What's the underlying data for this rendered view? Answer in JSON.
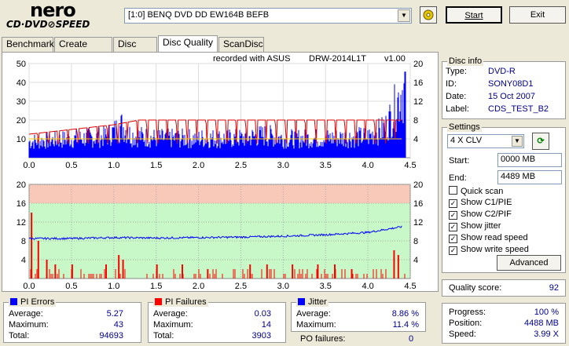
{
  "logo": {
    "line1": "nero",
    "line2": "CD·DVD⊘SPEED"
  },
  "drive_select": {
    "value": "[1:0]  BENQ DVD DD EW164B BEFB"
  },
  "buttons": {
    "start": "Start",
    "exit": "Exit",
    "advanced": "Advanced"
  },
  "tabs": [
    "Benchmark",
    "Create Disc",
    "Disc Info",
    "Disc Quality",
    "ScanDisc"
  ],
  "chart_header": {
    "recorded": "recorded with ASUS",
    "drive": "DRW-2014L1T",
    "version": "v1.00"
  },
  "chart_data": [
    {
      "type": "bar",
      "name": "PI Errors",
      "x_ticks": [
        "0.0",
        "0.5",
        "1.0",
        "1.5",
        "2.0",
        "2.5",
        "3.0",
        "3.5",
        "4.0",
        "4.5"
      ],
      "xlim": [
        0,
        4.5
      ],
      "y_left_ticks": [
        "10",
        "20",
        "30",
        "40",
        "50"
      ],
      "y_right_ticks": [
        "4",
        "8",
        "12",
        "16",
        "20"
      ],
      "ylim_left": [
        0,
        50
      ],
      "ylim_right": [
        0,
        20
      ],
      "pi_profile": [
        [
          0,
          10
        ],
        [
          0.3,
          11
        ],
        [
          0.6,
          12
        ],
        [
          0.9,
          13
        ],
        [
          1.0,
          16
        ],
        [
          1.1,
          20
        ],
        [
          1.2,
          14
        ],
        [
          1.5,
          12
        ],
        [
          2.0,
          12
        ],
        [
          2.5,
          12
        ],
        [
          2.8,
          14
        ],
        [
          3.0,
          12
        ],
        [
          3.5,
          12
        ],
        [
          4.0,
          13
        ],
        [
          4.2,
          18
        ],
        [
          4.3,
          28
        ],
        [
          4.35,
          35
        ],
        [
          4.4,
          42
        ],
        [
          4.45,
          45
        ]
      ],
      "speed_profile": [
        [
          0,
          5
        ],
        [
          0.5,
          6
        ],
        [
          1.0,
          7
        ],
        [
          1.3,
          8
        ],
        [
          4.4,
          8
        ]
      ],
      "colors": {
        "pi": "#0000ff",
        "speed": "#dd0000",
        "read": "#ffcc00"
      }
    },
    {
      "type": "bar",
      "name": "PI Failures",
      "x_ticks": [
        "0.0",
        "0.5",
        "1.0",
        "1.5",
        "2.0",
        "2.5",
        "3.0",
        "3.5",
        "4.0",
        "4.5"
      ],
      "xlim": [
        0,
        4.5
      ],
      "y_left_ticks": [
        "4",
        "8",
        "12",
        "16",
        "20"
      ],
      "y_right_ticks": [
        "4",
        "8",
        "12",
        "16",
        "20"
      ],
      "ylim": [
        0,
        20
      ],
      "jitter_profile": [
        [
          0,
          8.5
        ],
        [
          0.5,
          8.5
        ],
        [
          1.0,
          8.7
        ],
        [
          1.5,
          8.6
        ],
        [
          2.0,
          8.7
        ],
        [
          2.5,
          8.8
        ],
        [
          3.0,
          9.0
        ],
        [
          3.5,
          9.3
        ],
        [
          4.0,
          9.8
        ],
        [
          4.4,
          11.0
        ]
      ],
      "failure_spikes": [
        [
          0.02,
          14
        ],
        [
          0.1,
          8
        ],
        [
          0.2,
          4
        ],
        [
          0.3,
          3
        ],
        [
          0.5,
          3
        ],
        [
          0.9,
          3
        ],
        [
          1.05,
          5
        ],
        [
          1.1,
          4
        ],
        [
          1.5,
          3
        ],
        [
          1.8,
          3
        ],
        [
          2.1,
          2
        ],
        [
          2.6,
          3
        ],
        [
          2.8,
          3
        ],
        [
          3.1,
          3
        ],
        [
          3.4,
          3
        ],
        [
          3.6,
          3
        ],
        [
          3.8,
          2
        ],
        [
          4.3,
          6
        ],
        [
          4.35,
          5
        ]
      ],
      "bands": {
        "red_from": 16,
        "red_to": 20,
        "green_from": 0,
        "green_to": 16
      },
      "colors": {
        "fail": "#ff0000",
        "jitter": "#0000ff",
        "band_red": "#f8c8b8",
        "band_green": "#c8f8c8"
      }
    }
  ],
  "disc_info": {
    "title": "Disc info",
    "type_label": "Type:",
    "type": "DVD-R",
    "id_label": "ID:",
    "id": "SONY08D1",
    "date_label": "Date:",
    "date": "15 Oct 2007",
    "label_label": "Label:",
    "label": "CDS_TEST_B2"
  },
  "settings": {
    "title": "Settings",
    "speed": "4 X CLV",
    "start_label": "Start:",
    "start": "0000 MB",
    "end_label": "End:",
    "end": "4489 MB",
    "checks": [
      {
        "label": "Quick scan",
        "checked": false
      },
      {
        "label": "Show C1/PIE",
        "checked": true
      },
      {
        "label": "Show C2/PIF",
        "checked": true
      },
      {
        "label": "Show jitter",
        "checked": true
      },
      {
        "label": "Show read speed",
        "checked": true
      },
      {
        "label": "Show write speed",
        "checked": true
      }
    ]
  },
  "quality": {
    "label": "Quality score:",
    "value": "92"
  },
  "progress": {
    "progress_label": "Progress:",
    "progress": "100 %",
    "position_label": "Position:",
    "position": "4488 MB",
    "speed_label": "Speed:",
    "speed": "3.99 X"
  },
  "pi_errors": {
    "title": "PI Errors",
    "avg_label": "Average:",
    "avg": "5.27",
    "max_label": "Maximum:",
    "max": "43",
    "total_label": "Total:",
    "total": "94693",
    "color": "#0000ff"
  },
  "pi_failures": {
    "title": "PI Failures",
    "avg_label": "Average:",
    "avg": "0.03",
    "max_label": "Maximum:",
    "max": "14",
    "total_label": "Total:",
    "total": "3903",
    "color": "#ff0000"
  },
  "jitter": {
    "title": "Jitter",
    "avg_label": "Average:",
    "avg": "8.86 %",
    "max_label": "Maximum:",
    "max": "11.4 %",
    "color": "#0000ff"
  },
  "po": {
    "label": "PO failures:",
    "value": "0"
  }
}
